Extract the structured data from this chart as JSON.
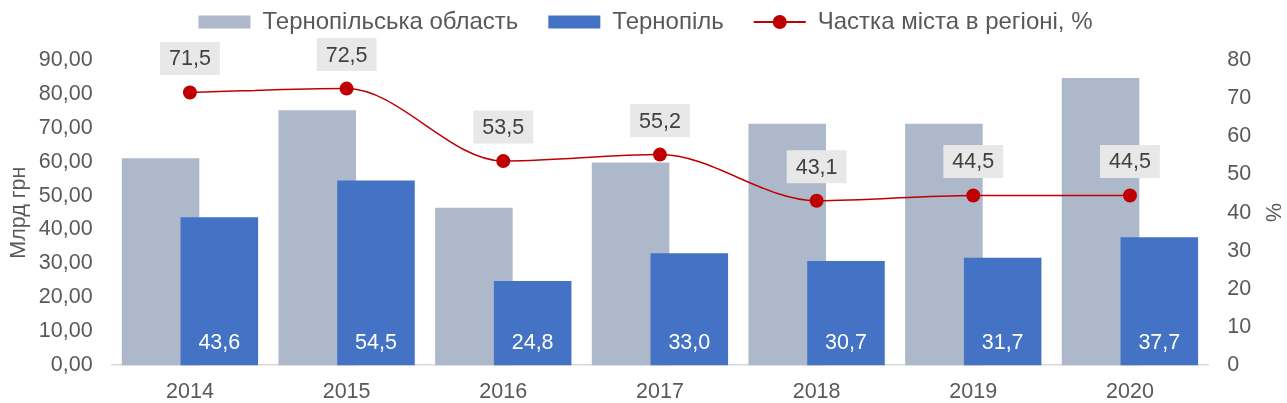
{
  "chart_data": {
    "type": "bar",
    "categories": [
      "2014",
      "2015",
      "2016",
      "2017",
      "2018",
      "2019",
      "2020"
    ],
    "series": [
      {
        "name": "Тернопільська область",
        "color": "#adb9ca",
        "values": [
          61.0,
          75.2,
          46.4,
          59.8,
          71.2,
          71.2,
          84.7
        ]
      },
      {
        "name": "Тернопіль",
        "color": "#4472c4",
        "values": [
          43.6,
          54.5,
          24.8,
          33.0,
          30.7,
          31.7,
          37.7
        ],
        "value_labels": [
          "43,6",
          "54,5",
          "24,8",
          "33,0",
          "30,7",
          "31,7",
          "37,7"
        ]
      },
      {
        "name": "Частка міста в регіоні, %",
        "type": "line",
        "axis": "y2",
        "color": "#c00000",
        "values": [
          71.5,
          72.5,
          53.5,
          55.2,
          43.1,
          44.5,
          44.5
        ],
        "value_labels": [
          "71,5",
          "72,5",
          "53,5",
          "55,2",
          "43,1",
          "44,5",
          "44,5"
        ]
      }
    ],
    "ylabel": "Млрд грн",
    "y2label": "%",
    "ylim": [
      0,
      90
    ],
    "yticks": [
      {
        "value": 0,
        "label": "0,00"
      },
      {
        "value": 10,
        "label": "10,00"
      },
      {
        "value": 20,
        "label": "20,00"
      },
      {
        "value": 30,
        "label": "30,00"
      },
      {
        "value": 40,
        "label": "40,00"
      },
      {
        "value": 50,
        "label": "50,00"
      },
      {
        "value": 60,
        "label": "60,00"
      },
      {
        "value": 70,
        "label": "70,00"
      },
      {
        "value": 80,
        "label": "80,00"
      },
      {
        "value": 90,
        "label": "90,00"
      }
    ],
    "y2lim": [
      0,
      80
    ],
    "y2ticks": [
      0,
      10,
      20,
      30,
      40,
      50,
      60,
      70,
      80
    ],
    "legend": "top",
    "grid": false,
    "marker": "circle"
  }
}
